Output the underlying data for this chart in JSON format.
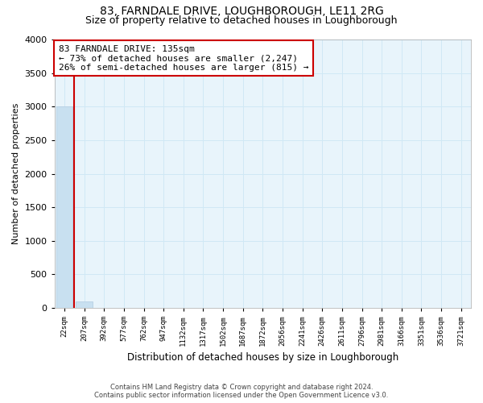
{
  "title": "83, FARNDALE DRIVE, LOUGHBOROUGH, LE11 2RG",
  "subtitle": "Size of property relative to detached houses in Loughborough",
  "xlabel": "Distribution of detached houses by size in Loughborough",
  "ylabel": "Number of detached properties",
  "footnote1": "Contains HM Land Registry data © Crown copyright and database right 2024.",
  "footnote2": "Contains public sector information licensed under the Open Government Licence v3.0.",
  "annotation_line1": "83 FARNDALE DRIVE: 135sqm",
  "annotation_line2": "← 73% of detached houses are smaller (2,247)",
  "annotation_line3": "26% of semi-detached houses are larger (815) →",
  "x_labels": [
    "22sqm",
    "207sqm",
    "392sqm",
    "577sqm",
    "762sqm",
    "947sqm",
    "1132sqm",
    "1317sqm",
    "1502sqm",
    "1687sqm",
    "1872sqm",
    "2056sqm",
    "2241sqm",
    "2426sqm",
    "2611sqm",
    "2796sqm",
    "2981sqm",
    "3166sqm",
    "3351sqm",
    "3536sqm",
    "3721sqm"
  ],
  "bar_values": [
    3000,
    100,
    0,
    0,
    0,
    0,
    0,
    0,
    0,
    0,
    0,
    0,
    0,
    0,
    0,
    0,
    0,
    0,
    0,
    0,
    0
  ],
  "bar_color": "#c8e0f0",
  "bar_edge_color": "#b0cce0",
  "vline_color": "#cc0000",
  "vline_x": 0.5,
  "annotation_box_color": "#ffffff",
  "annotation_border_color": "#cc0000",
  "ylim": [
    0,
    4000
  ],
  "yticks": [
    0,
    500,
    1000,
    1500,
    2000,
    2500,
    3000,
    3500,
    4000
  ],
  "grid_color": "#d0e8f5",
  "background_color": "#e8f4fb",
  "title_fontsize": 10,
  "subtitle_fontsize": 9,
  "annotation_fontsize": 8
}
